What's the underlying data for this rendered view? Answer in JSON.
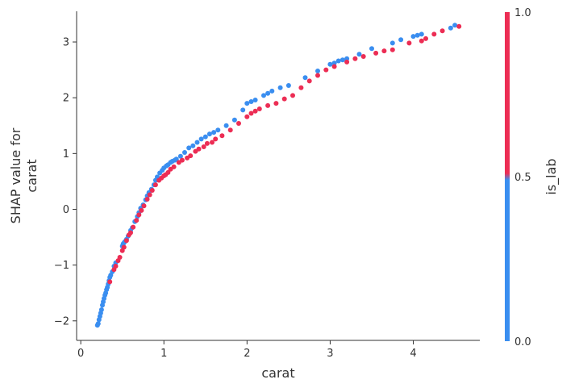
{
  "chart_data": {
    "type": "scatter",
    "title": "",
    "xlabel": "carat",
    "ylabel_lines": [
      "SHAP value for",
      "carat"
    ],
    "xlim": [
      -0.05,
      4.8
    ],
    "ylim": [
      -2.35,
      3.55
    ],
    "xticks": [
      0,
      1,
      2,
      3,
      4
    ],
    "yticks": [
      -2,
      -1,
      0,
      1,
      2,
      3
    ],
    "grid": false,
    "colorbar": {
      "label": "is_lab",
      "ticks": [
        "0.0",
        "0.5",
        "1.0"
      ],
      "low_color": "#3a8ef0",
      "high_color": "#ec2d54"
    },
    "series": [
      {
        "is_lab": 0,
        "color": "#3a8ef0",
        "points": [
          [
            0.2,
            -2.08
          ],
          [
            0.21,
            -2.05
          ],
          [
            0.22,
            -1.98
          ],
          [
            0.23,
            -1.92
          ],
          [
            0.24,
            -1.86
          ],
          [
            0.25,
            -1.8
          ],
          [
            0.26,
            -1.72
          ],
          [
            0.27,
            -1.66
          ],
          [
            0.28,
            -1.6
          ],
          [
            0.29,
            -1.54
          ],
          [
            0.3,
            -1.5
          ],
          [
            0.31,
            -1.44
          ],
          [
            0.32,
            -1.4
          ],
          [
            0.33,
            -1.34
          ],
          [
            0.34,
            -1.28
          ],
          [
            0.35,
            -1.22
          ],
          [
            0.36,
            -1.18
          ],
          [
            0.38,
            -1.12
          ],
          [
            0.4,
            -1.02
          ],
          [
            0.42,
            -0.96
          ],
          [
            0.5,
            -0.66
          ],
          [
            0.51,
            -0.62
          ],
          [
            0.52,
            -0.6
          ],
          [
            0.53,
            -0.58
          ],
          [
            0.55,
            -0.54
          ],
          [
            0.57,
            -0.48
          ],
          [
            0.6,
            -0.38
          ],
          [
            0.62,
            -0.33
          ],
          [
            0.65,
            -0.22
          ],
          [
            0.68,
            -0.13
          ],
          [
            0.7,
            -0.06
          ],
          [
            0.72,
            0.02
          ],
          [
            0.75,
            0.08
          ],
          [
            0.78,
            0.17
          ],
          [
            0.8,
            0.24
          ],
          [
            0.82,
            0.3
          ],
          [
            0.85,
            0.36
          ],
          [
            0.88,
            0.44
          ],
          [
            0.9,
            0.52
          ],
          [
            0.92,
            0.58
          ],
          [
            0.95,
            0.65
          ],
          [
            0.98,
            0.7
          ],
          [
            1.0,
            0.74
          ],
          [
            1.03,
            0.78
          ],
          [
            1.05,
            0.8
          ],
          [
            1.08,
            0.84
          ],
          [
            1.1,
            0.86
          ],
          [
            1.13,
            0.88
          ],
          [
            1.15,
            0.9
          ],
          [
            1.2,
            0.95
          ],
          [
            1.25,
            1.02
          ],
          [
            1.3,
            1.1
          ],
          [
            1.35,
            1.14
          ],
          [
            1.4,
            1.2
          ],
          [
            1.45,
            1.26
          ],
          [
            1.5,
            1.3
          ],
          [
            1.55,
            1.35
          ],
          [
            1.6,
            1.38
          ],
          [
            1.65,
            1.42
          ],
          [
            1.75,
            1.5
          ],
          [
            1.85,
            1.6
          ],
          [
            1.95,
            1.78
          ],
          [
            2.0,
            1.9
          ],
          [
            2.05,
            1.93
          ],
          [
            2.1,
            1.96
          ],
          [
            2.2,
            2.04
          ],
          [
            2.25,
            2.08
          ],
          [
            2.3,
            2.12
          ],
          [
            2.4,
            2.18
          ],
          [
            2.5,
            2.22
          ],
          [
            2.7,
            2.36
          ],
          [
            2.85,
            2.48
          ],
          [
            3.0,
            2.6
          ],
          [
            3.05,
            2.62
          ],
          [
            3.1,
            2.66
          ],
          [
            3.15,
            2.68
          ],
          [
            3.2,
            2.7
          ],
          [
            3.35,
            2.78
          ],
          [
            3.5,
            2.88
          ],
          [
            3.75,
            2.98
          ],
          [
            3.85,
            3.04
          ],
          [
            4.0,
            3.1
          ],
          [
            4.05,
            3.12
          ],
          [
            4.1,
            3.14
          ],
          [
            4.45,
            3.25
          ],
          [
            4.5,
            3.3
          ]
        ]
      },
      {
        "is_lab": 1,
        "color": "#ec2d54",
        "points": [
          [
            0.35,
            -1.3
          ],
          [
            0.4,
            -1.08
          ],
          [
            0.42,
            -1.02
          ],
          [
            0.45,
            -0.92
          ],
          [
            0.47,
            -0.86
          ],
          [
            0.5,
            -0.74
          ],
          [
            0.52,
            -0.68
          ],
          [
            0.55,
            -0.56
          ],
          [
            0.58,
            -0.46
          ],
          [
            0.6,
            -0.42
          ],
          [
            0.63,
            -0.32
          ],
          [
            0.67,
            -0.2
          ],
          [
            0.7,
            -0.1
          ],
          [
            0.73,
            -0.02
          ],
          [
            0.76,
            0.06
          ],
          [
            0.8,
            0.18
          ],
          [
            0.83,
            0.26
          ],
          [
            0.86,
            0.34
          ],
          [
            0.9,
            0.44
          ],
          [
            0.94,
            0.52
          ],
          [
            0.97,
            0.56
          ],
          [
            1.0,
            0.6
          ],
          [
            1.02,
            0.62
          ],
          [
            1.05,
            0.66
          ],
          [
            1.08,
            0.72
          ],
          [
            1.12,
            0.76
          ],
          [
            1.18,
            0.84
          ],
          [
            1.22,
            0.88
          ],
          [
            1.28,
            0.92
          ],
          [
            1.32,
            0.96
          ],
          [
            1.38,
            1.04
          ],
          [
            1.42,
            1.08
          ],
          [
            1.48,
            1.12
          ],
          [
            1.52,
            1.18
          ],
          [
            1.58,
            1.2
          ],
          [
            1.62,
            1.26
          ],
          [
            1.7,
            1.32
          ],
          [
            1.8,
            1.42
          ],
          [
            1.9,
            1.54
          ],
          [
            2.0,
            1.66
          ],
          [
            2.05,
            1.72
          ],
          [
            2.1,
            1.76
          ],
          [
            2.15,
            1.8
          ],
          [
            2.25,
            1.86
          ],
          [
            2.35,
            1.9
          ],
          [
            2.45,
            1.98
          ],
          [
            2.55,
            2.04
          ],
          [
            2.65,
            2.18
          ],
          [
            2.75,
            2.3
          ],
          [
            2.85,
            2.4
          ],
          [
            2.95,
            2.5
          ],
          [
            3.05,
            2.56
          ],
          [
            3.2,
            2.64
          ],
          [
            3.3,
            2.7
          ],
          [
            3.4,
            2.74
          ],
          [
            3.55,
            2.8
          ],
          [
            3.65,
            2.84
          ],
          [
            3.75,
            2.86
          ],
          [
            3.95,
            2.98
          ],
          [
            4.1,
            3.02
          ],
          [
            4.15,
            3.06
          ],
          [
            4.25,
            3.14
          ],
          [
            4.35,
            3.2
          ],
          [
            4.55,
            3.28
          ]
        ]
      }
    ]
  }
}
